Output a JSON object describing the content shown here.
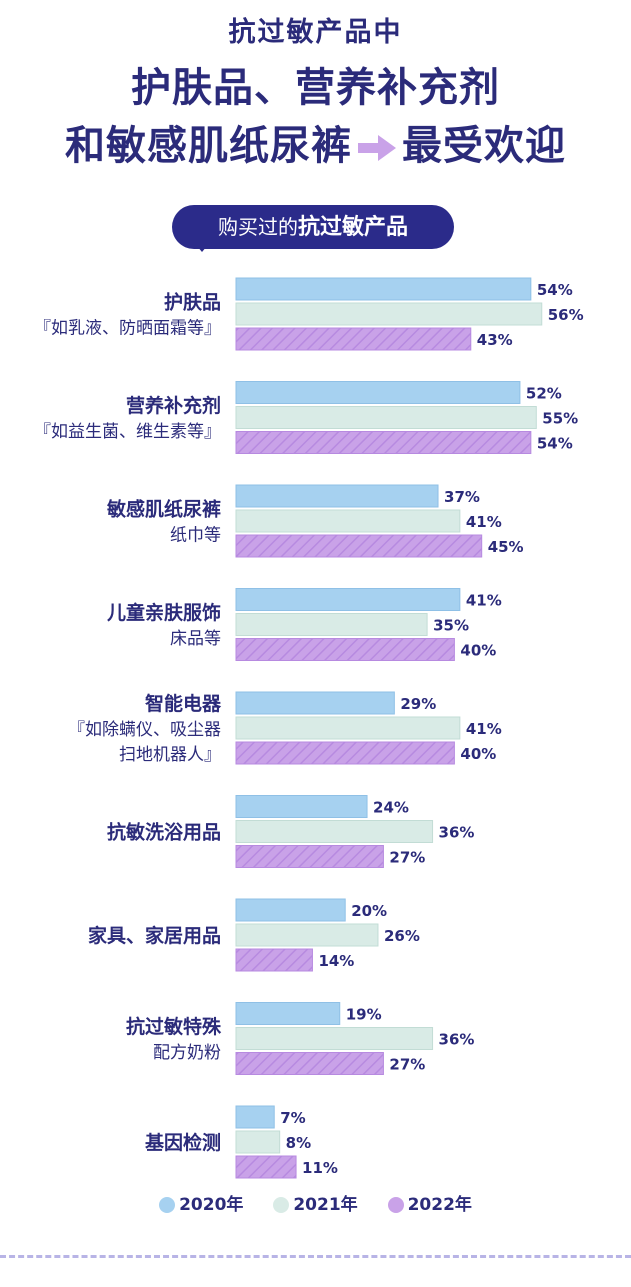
{
  "header": {
    "sup_title": "抗过敏产品中",
    "title_line1": "护肤品、营养补充剂",
    "title_line2a": "和敏感肌纸尿裤",
    "title_line2b": "最受欢迎"
  },
  "pill": {
    "prefix": "购买过的",
    "emphasis": "抗过敏产品"
  },
  "colors": {
    "y2020": "#a6d1f0",
    "y2021": "#d9ebe6",
    "y2022": "#c9a2e8",
    "text": "#2b2b7a"
  },
  "chart_data": {
    "type": "bar",
    "orientation": "horizontal",
    "categories": [
      {
        "label_main": "护肤品",
        "label_sub": "『如乳液、防晒面霜等』"
      },
      {
        "label_main": "营养补充剂",
        "label_sub": "『如益生菌、维生素等』"
      },
      {
        "label_main": "敏感肌纸尿裤",
        "label_sub": "纸巾等"
      },
      {
        "label_main": "儿童亲肤服饰",
        "label_sub": "床品等"
      },
      {
        "label_main": "智能电器",
        "label_sub": "『如除螨仪、吸尘器",
        "label_sub2": "扫地机器人』"
      },
      {
        "label_main": "抗敏洗浴用品",
        "label_sub": ""
      },
      {
        "label_main": "家具、家居用品",
        "label_sub": ""
      },
      {
        "label_main": "抗过敏特殊",
        "label_sub": "配方奶粉"
      },
      {
        "label_main": "基因检测",
        "label_sub": ""
      }
    ],
    "series": [
      {
        "name": "2020年",
        "values": [
          54,
          52,
          37,
          41,
          29,
          24,
          20,
          19,
          7
        ],
        "labels": [
          "54%",
          "52%",
          "37%",
          "41%",
          "29%",
          "24%",
          "20%",
          "19%",
          "7%"
        ]
      },
      {
        "name": "2021年",
        "values": [
          56,
          55,
          41,
          35,
          41,
          36,
          26,
          36,
          8
        ],
        "labels": [
          "56%",
          "55%",
          "41%",
          "35%",
          "41%",
          "36%",
          "26%",
          "36%",
          "8%"
        ]
      },
      {
        "name": "2022年",
        "values": [
          43,
          54,
          45,
          40,
          40,
          27,
          14,
          27,
          11
        ],
        "labels": [
          "43%",
          "54%",
          "45%",
          "40%",
          "40%",
          "27%",
          "14%",
          "27%",
          "11%"
        ]
      }
    ]
  }
}
